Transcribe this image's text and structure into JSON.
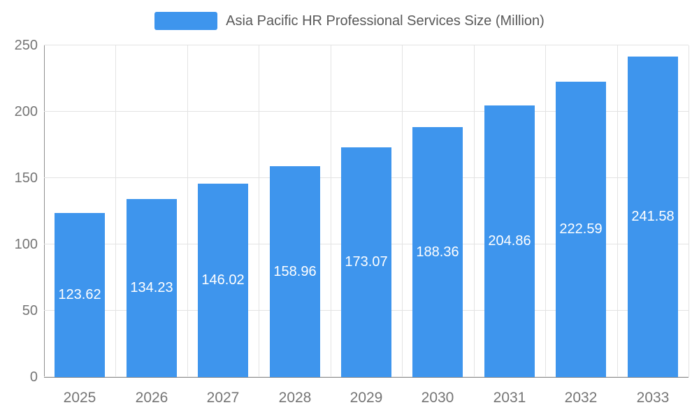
{
  "legend": {
    "swatch_color": "#3E95ED",
    "title": "Asia Pacific HR Professional Services Size (Million)"
  },
  "chart_data": {
    "type": "bar",
    "title": "Asia Pacific HR Professional Services Size (Million)",
    "categories": [
      "2025",
      "2026",
      "2027",
      "2028",
      "2029",
      "2030",
      "2031",
      "2032",
      "2033"
    ],
    "values": [
      123.62,
      134.23,
      146.02,
      158.96,
      173.07,
      188.36,
      204.86,
      222.59,
      241.58
    ],
    "value_labels": [
      "123.62",
      "134.23",
      "146.02",
      "158.96",
      "173.07",
      "188.36",
      "204.86",
      "222.59",
      "241.58"
    ],
    "xlabel": "",
    "ylabel": "",
    "ylim": [
      0,
      250
    ],
    "yticks": [
      0,
      50,
      100,
      150,
      200,
      250
    ],
    "ytick_labels": [
      "0",
      "50",
      "100",
      "150",
      "200",
      "250"
    ],
    "grid": true,
    "legend_position": "top-center",
    "bar_color": "#3E95ED",
    "value_label_color": "#ffffff",
    "axis_label_color": "#757575",
    "gridline_color": "#e3e3e3"
  }
}
